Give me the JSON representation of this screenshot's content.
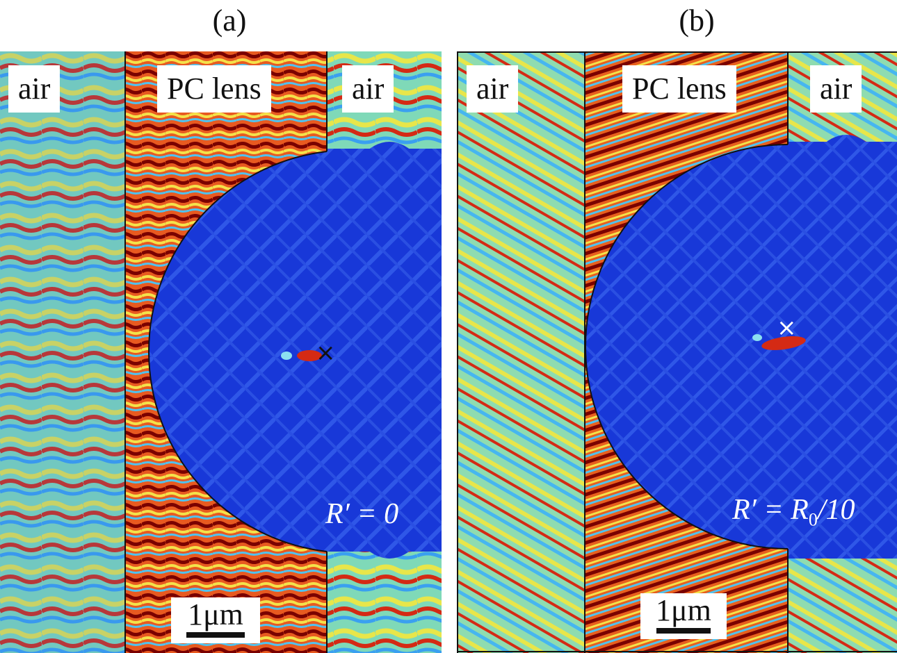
{
  "figure": {
    "panels": [
      {
        "id": "a",
        "title": "(a)",
        "regions": {
          "left": "air",
          "middle": "PC lens",
          "right": "air"
        },
        "radius_label": "R′ = 0",
        "scale_label": "1μm",
        "focus_marker": "×",
        "marker_color": "#111111"
      },
      {
        "id": "b",
        "title": "(b)",
        "regions": {
          "left": "air",
          "middle": "PC lens",
          "right": "air"
        },
        "radius_label_main": "R′ = R",
        "radius_label_sub": "0",
        "radius_label_tail": "/10",
        "scale_label": "1μm",
        "focus_marker": "×",
        "marker_color": "#ffffff"
      }
    ],
    "colors": {
      "field_low": "#1436d6",
      "field_mid": "#8be07a",
      "field_high": "#d42a14",
      "field_peak": "#7a0000"
    }
  }
}
